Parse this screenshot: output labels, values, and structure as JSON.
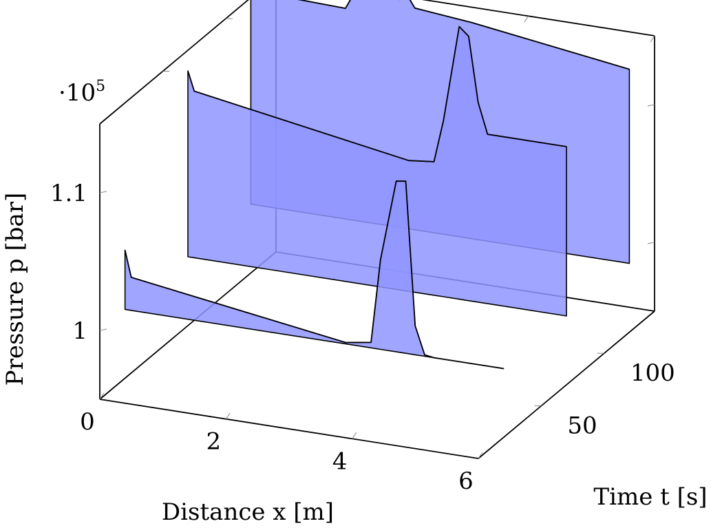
{
  "chart_data": {
    "type": "area",
    "title": "",
    "xlabel": "Distance x [m]",
    "ylabel": "Time t [s]",
    "zlabel": "Pressure p [bar]",
    "z_multiplier_label": "·10^5",
    "xlim": [
      0,
      6
    ],
    "ylim": [
      0,
      140
    ],
    "zlim": [
      0.95,
      1.15
    ],
    "x_ticks": [
      "0",
      "2",
      "4",
      "6"
    ],
    "y_ticks": [
      "50",
      "100"
    ],
    "z_ticks": [
      "1",
      "1.1"
    ],
    "grid": false,
    "legend": "none",
    "color": "#8f95ff",
    "series": [
      {
        "t": 20,
        "x": [
          0,
          0.1,
          3.5,
          3.9,
          4.05,
          4.3,
          4.45,
          4.6,
          4.75,
          4.9,
          6.0
        ],
        "p": [
          1.043,
          1.024,
          1.001,
          1.004,
          1.065,
          1.124,
          1.125,
          1.021,
          1.001,
          1.0,
          1.0
        ]
      },
      {
        "t": 70,
        "x": [
          0,
          0.1,
          3.5,
          3.9,
          4.05,
          4.3,
          4.45,
          4.6,
          4.75,
          4.9,
          6.0
        ],
        "p": [
          1.135,
          1.121,
          1.095,
          1.097,
          1.128,
          1.198,
          1.192,
          1.145,
          1.123,
          1.123,
          1.123
        ]
      },
      {
        "t": 120,
        "x": [
          0,
          0.1,
          1.5,
          1.65,
          1.8,
          1.95,
          2.3,
          2.6,
          3.5,
          6.0
        ],
        "p": [
          1.172,
          1.155,
          1.153,
          1.166,
          1.243,
          1.238,
          1.182,
          1.161,
          1.157,
          1.141
        ]
      }
    ]
  }
}
